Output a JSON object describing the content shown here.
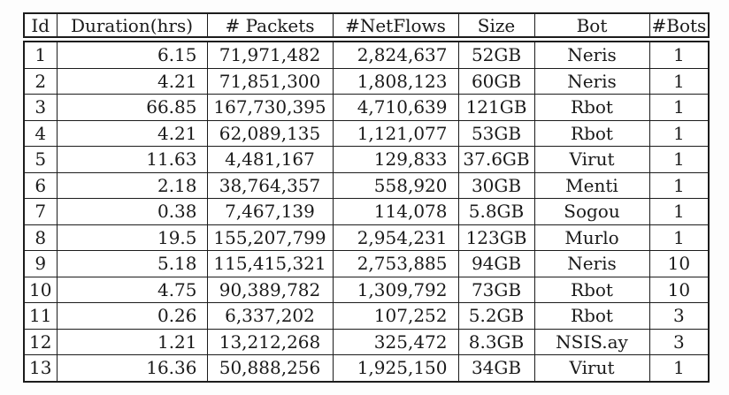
{
  "colors": {
    "page_background": "#fdfdfd",
    "table_background": "#ffffff",
    "border": "#1c1c1c",
    "text": "#1a1a1a"
  },
  "table": {
    "headers": [
      "Id",
      "Duration(hrs)",
      "# Packets",
      "#NetFlows",
      "Size",
      "Bot",
      "#Bots"
    ],
    "rows": [
      [
        "1",
        "6.15",
        "71,971,482",
        "2,824,637",
        "52GB",
        "Neris",
        "1"
      ],
      [
        "2",
        "4.21",
        "71,851,300",
        "1,808,123",
        "60GB",
        "Neris",
        "1"
      ],
      [
        "3",
        "66.85",
        "167,730,395",
        "4,710,639",
        "121GB",
        "Rbot",
        "1"
      ],
      [
        "4",
        "4.21",
        "62,089,135",
        "1,121,077",
        "53GB",
        "Rbot",
        "1"
      ],
      [
        "5",
        "11.63",
        "4,481,167",
        "129,833",
        "37.6GB",
        "Virut",
        "1"
      ],
      [
        "6",
        "2.18",
        "38,764,357",
        "558,920",
        "30GB",
        "Menti",
        "1"
      ],
      [
        "7",
        "0.38",
        "7,467,139",
        "114,078",
        "5.8GB",
        "Sogou",
        "1"
      ],
      [
        "8",
        "19.5",
        "155,207,799",
        "2,954,231",
        "123GB",
        "Murlo",
        "1"
      ],
      [
        "9",
        "5.18",
        "115,415,321",
        "2,753,885",
        "94GB",
        "Neris",
        "10"
      ],
      [
        "10",
        "4.75",
        "90,389,782",
        "1,309,792",
        "73GB",
        "Rbot",
        "10"
      ],
      [
        "11",
        "0.26",
        "6,337,202",
        "107,252",
        "5.2GB",
        "Rbot",
        "3"
      ],
      [
        "12",
        "1.21",
        "13,212,268",
        "325,472",
        "8.3GB",
        "NSIS.ay",
        "3"
      ],
      [
        "13",
        "16.36",
        "50,888,256",
        "1,925,150",
        "34GB",
        "Virut",
        "1"
      ]
    ]
  },
  "chart_data": {
    "type": "table",
    "columns": [
      "Id",
      "Duration(hrs)",
      "# Packets",
      "#NetFlows",
      "Size",
      "Bot",
      "#Bots"
    ],
    "rows": [
      [
        "1",
        "6.15",
        "71,971,482",
        "2,824,637",
        "52GB",
        "Neris",
        "1"
      ],
      [
        "2",
        "4.21",
        "71,851,300",
        "1,808,123",
        "60GB",
        "Neris",
        "1"
      ],
      [
        "3",
        "66.85",
        "167,730,395",
        "4,710,639",
        "121GB",
        "Rbot",
        "1"
      ],
      [
        "4",
        "4.21",
        "62,089,135",
        "1,121,077",
        "53GB",
        "Rbot",
        "1"
      ],
      [
        "5",
        "11.63",
        "4,481,167",
        "129,833",
        "37.6GB",
        "Virut",
        "1"
      ],
      [
        "6",
        "2.18",
        "38,764,357",
        "558,920",
        "30GB",
        "Menti",
        "1"
      ],
      [
        "7",
        "0.38",
        "7,467,139",
        "114,078",
        "5.8GB",
        "Sogou",
        "1"
      ],
      [
        "8",
        "19.5",
        "155,207,799",
        "2,954,231",
        "123GB",
        "Murlo",
        "1"
      ],
      [
        "9",
        "5.18",
        "115,415,321",
        "2,753,885",
        "94GB",
        "Neris",
        "10"
      ],
      [
        "10",
        "4.75",
        "90,389,782",
        "1,309,792",
        "73GB",
        "Rbot",
        "10"
      ],
      [
        "11",
        "0.26",
        "6,337,202",
        "107,252",
        "5.2GB",
        "Rbot",
        "3"
      ],
      [
        "12",
        "1.21",
        "13,212,268",
        "325,472",
        "8.3GB",
        "NSIS.ay",
        "3"
      ],
      [
        "13",
        "16.36",
        "50,888,256",
        "1,925,150",
        "34GB",
        "Virut",
        "1"
      ]
    ]
  }
}
